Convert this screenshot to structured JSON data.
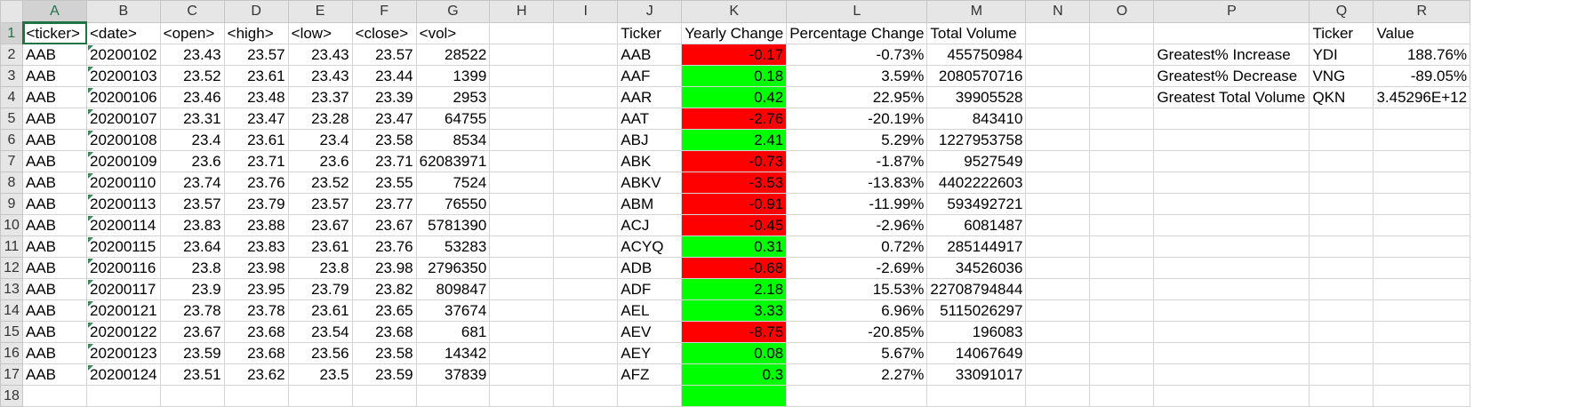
{
  "column_headers": [
    "A",
    "B",
    "C",
    "D",
    "E",
    "F",
    "G",
    "H",
    "I",
    "J",
    "K",
    "L",
    "M",
    "N",
    "O",
    "P",
    "Q",
    "R"
  ],
  "row_numbers": [
    "1",
    "2",
    "3",
    "4",
    "5",
    "6",
    "7",
    "8",
    "9",
    "10",
    "11",
    "12",
    "13",
    "14",
    "15",
    "16",
    "17",
    "18"
  ],
  "raw_headers": [
    "<ticker>",
    "<date>",
    "<open>",
    "<high>",
    "<low>",
    "<close>",
    "<vol>"
  ],
  "raw_rows": [
    [
      "AAB",
      "20200102",
      "23.43",
      "23.57",
      "23.43",
      "23.57",
      "28522"
    ],
    [
      "AAB",
      "20200103",
      "23.52",
      "23.61",
      "23.43",
      "23.44",
      "1399"
    ],
    [
      "AAB",
      "20200106",
      "23.46",
      "23.48",
      "23.37",
      "23.39",
      "2953"
    ],
    [
      "AAB",
      "20200107",
      "23.31",
      "23.47",
      "23.28",
      "23.47",
      "64755"
    ],
    [
      "AAB",
      "20200108",
      "23.4",
      "23.61",
      "23.4",
      "23.58",
      "8534"
    ],
    [
      "AAB",
      "20200109",
      "23.6",
      "23.71",
      "23.6",
      "23.71",
      "62083971"
    ],
    [
      "AAB",
      "20200110",
      "23.74",
      "23.76",
      "23.52",
      "23.55",
      "7524"
    ],
    [
      "AAB",
      "20200113",
      "23.57",
      "23.79",
      "23.57",
      "23.77",
      "76550"
    ],
    [
      "AAB",
      "20200114",
      "23.83",
      "23.88",
      "23.67",
      "23.67",
      "5781390"
    ],
    [
      "AAB",
      "20200115",
      "23.64",
      "23.83",
      "23.61",
      "23.76",
      "53283"
    ],
    [
      "AAB",
      "20200116",
      "23.8",
      "23.98",
      "23.8",
      "23.98",
      "2796350"
    ],
    [
      "AAB",
      "20200117",
      "23.9",
      "23.95",
      "23.79",
      "23.82",
      "809847"
    ],
    [
      "AAB",
      "20200121",
      "23.78",
      "23.78",
      "23.61",
      "23.65",
      "37674"
    ],
    [
      "AAB",
      "20200122",
      "23.67",
      "23.68",
      "23.54",
      "23.68",
      "681"
    ],
    [
      "AAB",
      "20200123",
      "23.59",
      "23.68",
      "23.56",
      "23.58",
      "14342"
    ],
    [
      "AAB",
      "20200124",
      "23.51",
      "23.62",
      "23.5",
      "23.59",
      "37839"
    ],
    [
      "",
      "",
      "",
      "",
      "",
      "",
      ""
    ]
  ],
  "summary_headers": [
    "Ticker",
    "Yearly Change",
    "Percentage Change",
    "Total Volume"
  ],
  "summary_rows": [
    {
      "ticker": "AAB",
      "change": "-0.17",
      "pct": "-0.73%",
      "vol": "455750984",
      "status": "neg"
    },
    {
      "ticker": "AAF",
      "change": "0.18",
      "pct": "3.59%",
      "vol": "2080570716",
      "status": "pos"
    },
    {
      "ticker": "AAR",
      "change": "0.42",
      "pct": "22.95%",
      "vol": "39905528",
      "status": "pos"
    },
    {
      "ticker": "AAT",
      "change": "-2.76",
      "pct": "-20.19%",
      "vol": "843410",
      "status": "neg"
    },
    {
      "ticker": "ABJ",
      "change": "2.41",
      "pct": "5.29%",
      "vol": "1227953758",
      "status": "pos"
    },
    {
      "ticker": "ABK",
      "change": "-0.73",
      "pct": "-1.87%",
      "vol": "9527549",
      "status": "neg"
    },
    {
      "ticker": "ABKV",
      "change": "-3.53",
      "pct": "-13.83%",
      "vol": "4402222603",
      "status": "neg"
    },
    {
      "ticker": "ABM",
      "change": "-0.91",
      "pct": "-11.99%",
      "vol": "593492721",
      "status": "neg"
    },
    {
      "ticker": "ACJ",
      "change": "-0.45",
      "pct": "-2.96%",
      "vol": "6081487",
      "status": "neg"
    },
    {
      "ticker": "ACYQ",
      "change": "0.31",
      "pct": "0.72%",
      "vol": "285144917",
      "status": "pos"
    },
    {
      "ticker": "ADB",
      "change": "-0.68",
      "pct": "-2.69%",
      "vol": "34526036",
      "status": "neg"
    },
    {
      "ticker": "ADF",
      "change": "2.18",
      "pct": "15.53%",
      "vol": "22708794844",
      "status": "pos"
    },
    {
      "ticker": "AEL",
      "change": "3.33",
      "pct": "6.96%",
      "vol": "5115026297",
      "status": "pos"
    },
    {
      "ticker": "AEV",
      "change": "-8.75",
      "pct": "-20.85%",
      "vol": "196083",
      "status": "neg"
    },
    {
      "ticker": "AEY",
      "change": "0.08",
      "pct": "5.67%",
      "vol": "14067649",
      "status": "pos"
    },
    {
      "ticker": "AFZ",
      "change": "0.3",
      "pct": "2.27%",
      "vol": "33091017",
      "status": "pos"
    },
    {
      "ticker": "",
      "change": "",
      "pct": "",
      "vol": "",
      "status": "pos"
    }
  ],
  "greatest": {
    "headers": [
      "Ticker",
      "Value"
    ],
    "rows": [
      {
        "label": "Greatest% Increase",
        "ticker": "YDI",
        "value": "188.76%"
      },
      {
        "label": "Greatest% Decrease",
        "ticker": "VNG",
        "value": "-89.05%"
      },
      {
        "label": "Greatest Total Volume",
        "ticker": "QKN",
        "value": "3.45296E+12"
      }
    ]
  },
  "colors": {
    "negative": "#ff0000",
    "positive": "#00ff00",
    "selection": "#217346"
  }
}
